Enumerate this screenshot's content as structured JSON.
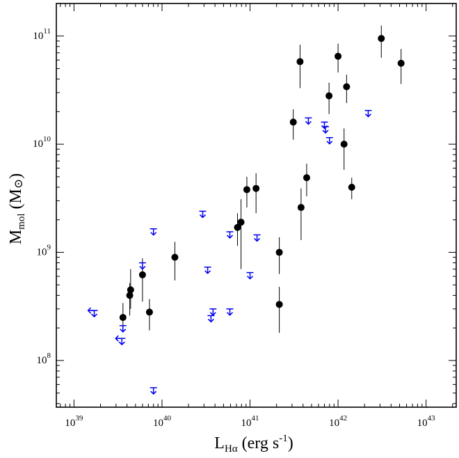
{
  "chart_data": {
    "type": "scatter",
    "xlabel": {
      "main": "L",
      "sub": "Hα",
      "unit": "(erg s",
      "unit_sup": "-1",
      "unit_end": ")"
    },
    "ylabel": {
      "main": "M",
      "sub": "mol",
      "unit": "(M",
      "unit_sym": "⊙",
      "unit_end": ")"
    },
    "x_scale": "log",
    "y_scale": "log",
    "xlim": [
      6.3e+38,
      2.2e+43
    ],
    "ylim": [
      37000000.0,
      200000000000.0
    ],
    "grid": false,
    "x_ticks": [
      {
        "value": 1e+39,
        "base": "10",
        "exp": "39"
      },
      {
        "value": 1e+40,
        "base": "10",
        "exp": "40"
      },
      {
        "value": 1e+41,
        "base": "10",
        "exp": "41"
      },
      {
        "value": 1e+42,
        "base": "10",
        "exp": "42"
      },
      {
        "value": 1e+43,
        "base": "10",
        "exp": "43"
      }
    ],
    "y_ticks": [
      {
        "value": 100000000.0,
        "base": "10",
        "exp": "8"
      },
      {
        "value": 1000000000.0,
        "base": "10",
        "exp": "9"
      },
      {
        "value": 10000000000.0,
        "base": "10",
        "exp": "10"
      },
      {
        "value": 100000000000.0,
        "base": "10",
        "exp": "11"
      }
    ],
    "colors": {
      "detections": "#000000",
      "upper_limits": "#0000ee",
      "error_bars": "#000000",
      "axes": "#000000"
    },
    "series": [
      {
        "kind": "detections",
        "marker": "filled-circle",
        "points": [
          {
            "x": 3.6e+39,
            "y": 250000000.0,
            "ylo": 190000000.0,
            "yhi": 340000000.0
          },
          {
            "x": 4.3e+39,
            "y": 400000000.0,
            "ylo": 260000000.0,
            "yhi": 520000000.0
          },
          {
            "x": 4.4e+39,
            "y": 450000000.0,
            "ylo": 300000000.0,
            "yhi": 700000000.0
          },
          {
            "x": 6e+39,
            "y": 620000000.0,
            "ylo": 350000000.0,
            "yhi": 880000000.0
          },
          {
            "x": 7.2e+39,
            "y": 280000000.0,
            "ylo": 190000000.0,
            "yhi": 370000000.0
          },
          {
            "x": 1.4e+40,
            "y": 900000000.0,
            "ylo": 550000000.0,
            "yhi": 1250000000.0
          },
          {
            "x": 7.2e+40,
            "y": 1700000000.0,
            "ylo": 1150000000.0,
            "yhi": 2300000000.0
          },
          {
            "x": 7.9e+40,
            "y": 1900000000.0,
            "ylo": 700000000.0,
            "yhi": 3100000000.0
          },
          {
            "x": 9.2e+40,
            "y": 3800000000.0,
            "ylo": 2600000000.0,
            "yhi": 5000000000.0
          },
          {
            "x": 1.17e+41,
            "y": 3900000000.0,
            "ylo": 2300000000.0,
            "yhi": 5400000000.0
          },
          {
            "x": 2.15e+41,
            "y": 1000000000.0,
            "ylo": 630000000.0,
            "yhi": 1380000000.0
          },
          {
            "x": 2.15e+41,
            "y": 330000000.0,
            "ylo": 180000000.0,
            "yhi": 480000000.0
          },
          {
            "x": 3.1e+41,
            "y": 16000000000.0,
            "ylo": 11000000000.0,
            "yhi": 21000000000.0
          },
          {
            "x": 3.7e+41,
            "y": 58000000000.0,
            "ylo": 33000000000.0,
            "yhi": 83000000000.0
          },
          {
            "x": 3.8e+41,
            "y": 2600000000.0,
            "ylo": 1300000000.0,
            "yhi": 3900000000.0
          },
          {
            "x": 4.4e+41,
            "y": 4900000000.0,
            "ylo": 3300000000.0,
            "yhi": 6600000000.0
          },
          {
            "x": 7.9e+41,
            "y": 28000000000.0,
            "ylo": 19000000000.0,
            "yhi": 37000000000.0
          },
          {
            "x": 1e+42,
            "y": 65000000000.0,
            "ylo": 46000000000.0,
            "yhi": 85000000000.0
          },
          {
            "x": 1.17e+42,
            "y": 10000000000.0,
            "ylo": 5800000000.0,
            "yhi": 14000000000.0
          },
          {
            "x": 1.25e+42,
            "y": 34000000000.0,
            "ylo": 24000000000.0,
            "yhi": 44000000000.0
          },
          {
            "x": 1.43e+42,
            "y": 4000000000.0,
            "ylo": 3100000000.0,
            "yhi": 4900000000.0
          },
          {
            "x": 3.1e+42,
            "y": 95000000000.0,
            "ylo": 63000000000.0,
            "yhi": 125000000000.0
          },
          {
            "x": 5.2e+42,
            "y": 56000000000.0,
            "ylo": 36000000000.0,
            "yhi": 76000000000.0
          }
        ]
      },
      {
        "kind": "upper-limits",
        "marker": "down-arrow",
        "points": [
          {
            "x": 1.7e+39,
            "y": 290000000.0,
            "xlimit": true
          },
          {
            "x": 3.5e+39,
            "y": 160000000.0,
            "xlimit": true
          },
          {
            "x": 3.6e+39,
            "y": 210000000.0
          },
          {
            "x": 6e+39,
            "y": 800000000.0
          },
          {
            "x": 8e+39,
            "y": 1650000000.0
          },
          {
            "x": 8e+39,
            "y": 56000000.0
          },
          {
            "x": 2.9e+40,
            "y": 2400000000.0
          },
          {
            "x": 3.3e+40,
            "y": 730000000.0
          },
          {
            "x": 3.6e+40,
            "y": 260000000.0
          },
          {
            "x": 3.8e+40,
            "y": 300000000.0
          },
          {
            "x": 5.9e+40,
            "y": 1550000000.0
          },
          {
            "x": 5.9e+40,
            "y": 300000000.0
          },
          {
            "x": 1e+41,
            "y": 650000000.0
          },
          {
            "x": 1.2e+41,
            "y": 1450000000.0
          },
          {
            "x": 4.6e+41,
            "y": 17500000000.0
          },
          {
            "x": 7e+41,
            "y": 16000000000.0
          },
          {
            "x": 7.2e+41,
            "y": 14500000000.0
          },
          {
            "x": 8e+41,
            "y": 11500000000.0
          },
          {
            "x": 2.2e+42,
            "y": 20500000000.0
          }
        ]
      }
    ]
  }
}
